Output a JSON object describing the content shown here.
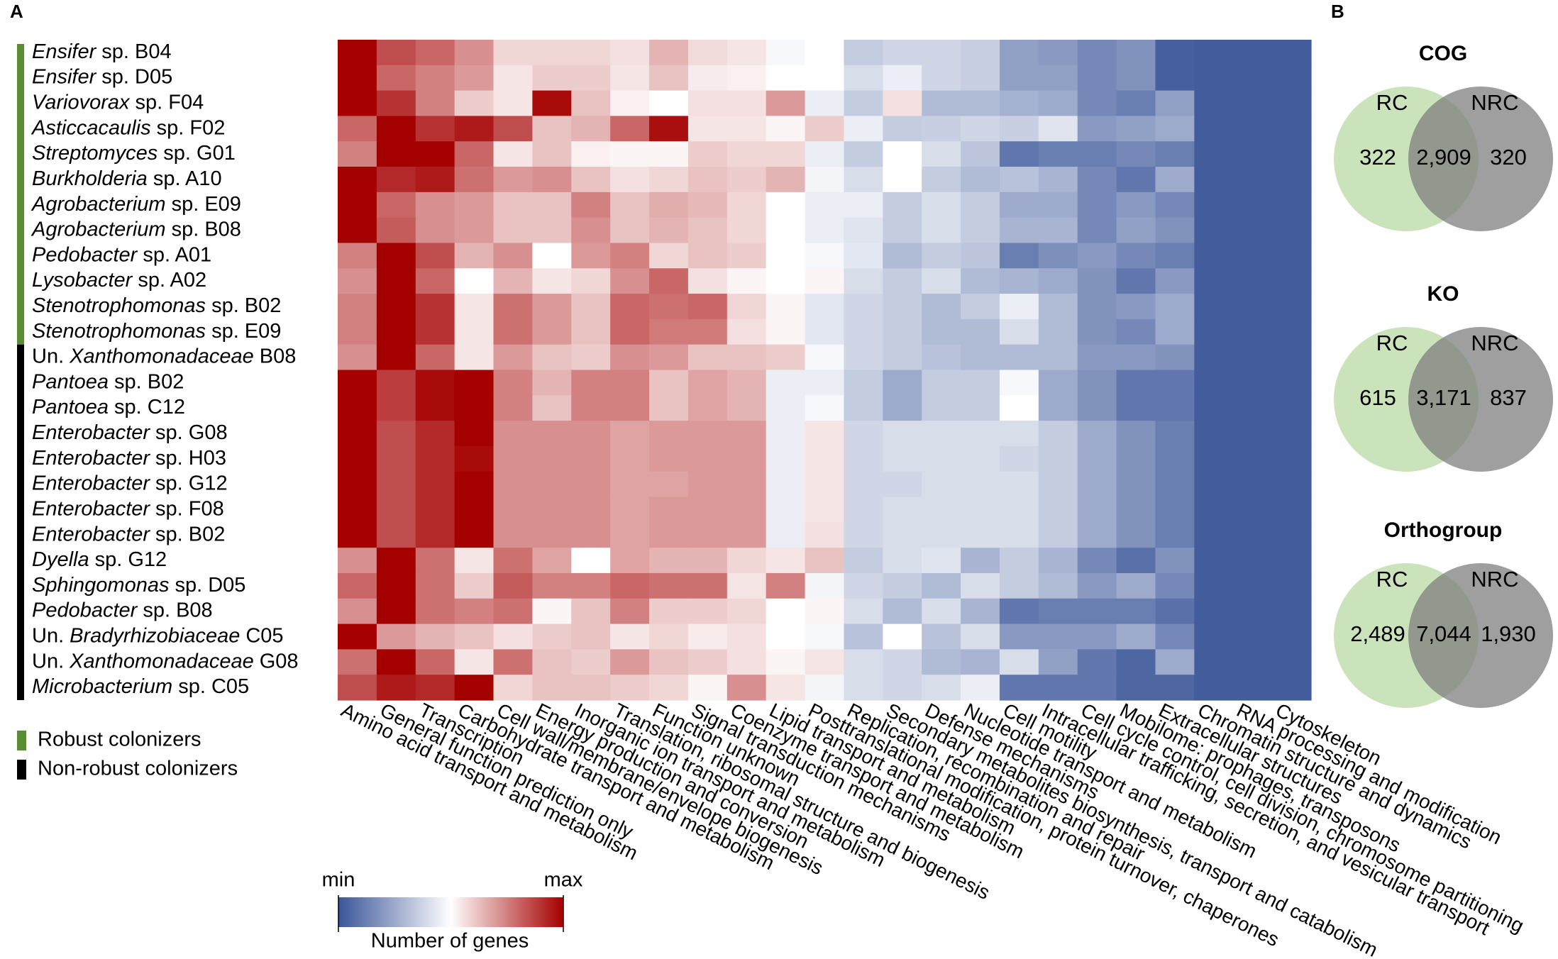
{
  "panels": [
    "A",
    "B"
  ],
  "chart_data": [
    {
      "type": "heatmap",
      "columns": [
        "Amino acid transport and metabolism",
        "General function prediction only",
        "Transcription",
        "Carbohydrate transport and metabolism",
        "Cell wall/membrane/envelope biogenesis",
        "Energy production and conversion",
        "Inorganic ion transport and metabolism",
        "Translation, ribosomal structure and biogenesis",
        "Function unknown",
        "Signal transduction mechanisms",
        "Coenzyme transport and metabolism",
        "Lipid transport and metabolism",
        "Posttranslational modification, protein turnover, chaperones",
        "Replication, recombination and repair",
        "Secondary metabolites biosynthesis, transport and catabolism",
        "Defense mechanisms",
        "Nucleotide transport and metabolism",
        "Cell motility",
        "Intracellular trafficking, secretion, and vesicular transport",
        "Cell cycle control, cell division, chromosome partitioning",
        "Mobilome: prophages, transposons",
        "Extracellular structures",
        "Chromatin structure and dynamics",
        "RNA processing and modification",
        "Cytoskeleton"
      ],
      "groups": [
        {
          "name": "Robust colonizers",
          "color": "#5b8c35",
          "rows": [
            {
              "italic": "Ensifer",
              "suffix": "sp. B04",
              "values": [
                100,
                85,
                80,
                72,
                58,
                58,
                58,
                56,
                65,
                57,
                55,
                48,
                50,
                35,
                38,
                38,
                36,
                22,
                20,
                15,
                18,
                3,
                2,
                2,
                2
              ]
            },
            {
              "italic": "Ensifer",
              "suffix": "sp. D05",
              "values": [
                100,
                80,
                75,
                70,
                55,
                60,
                60,
                55,
                62,
                54,
                53,
                50,
                50,
                40,
                45,
                38,
                36,
                22,
                22,
                15,
                18,
                3,
                2,
                2,
                2
              ]
            },
            {
              "italic": "Variovorax",
              "suffix": "sp. F04",
              "values": [
                100,
                90,
                75,
                60,
                55,
                98,
                62,
                53,
                50,
                56,
                56,
                70,
                45,
                35,
                56,
                30,
                30,
                27,
                25,
                15,
                12,
                22,
                2,
                2,
                2
              ]
            },
            {
              "italic": "Asticcacaulis",
              "suffix": "sp. F02",
              "values": [
                80,
                100,
                90,
                95,
                85,
                62,
                65,
                80,
                97,
                55,
                55,
                52,
                60,
                45,
                35,
                36,
                38,
                36,
                42,
                20,
                22,
                25,
                2,
                2,
                2
              ]
            },
            {
              "italic": "Streptomyces",
              "suffix": "sp. G01",
              "values": [
                75,
                100,
                100,
                80,
                55,
                62,
                53,
                52,
                52,
                60,
                58,
                58,
                45,
                35,
                50,
                40,
                33,
                10,
                12,
                12,
                15,
                12,
                2,
                2,
                2
              ]
            },
            {
              "italic": "Burkholderia",
              "suffix": "sp. A10",
              "values": [
                100,
                92,
                95,
                78,
                70,
                72,
                62,
                56,
                58,
                62,
                60,
                65,
                47,
                40,
                50,
                35,
                30,
                32,
                28,
                15,
                10,
                25,
                2,
                2,
                2
              ]
            },
            {
              "italic": "Agrobacterium",
              "suffix": "sp. E09",
              "values": [
                100,
                80,
                72,
                70,
                62,
                62,
                75,
                62,
                66,
                64,
                58,
                50,
                45,
                45,
                35,
                40,
                35,
                25,
                25,
                15,
                20,
                15,
                2,
                2,
                2
              ]
            },
            {
              "italic": "Agrobacterium",
              "suffix": "sp. B08",
              "values": [
                100,
                82,
                72,
                70,
                62,
                62,
                72,
                62,
                65,
                62,
                58,
                50,
                45,
                42,
                35,
                40,
                35,
                28,
                28,
                15,
                22,
                18,
                2,
                2,
                2
              ]
            },
            {
              "italic": "Pedobacter",
              "suffix": "sp. A01",
              "values": [
                75,
                100,
                85,
                65,
                72,
                50,
                70,
                75,
                58,
                62,
                60,
                50,
                48,
                43,
                30,
                35,
                33,
                12,
                17,
                20,
                15,
                12,
                2,
                2,
                2
              ]
            },
            {
              "italic": "Lysobacter",
              "suffix": "sp. A02",
              "values": [
                72,
                100,
                80,
                50,
                65,
                55,
                58,
                72,
                80,
                56,
                52,
                50,
                52,
                40,
                35,
                40,
                30,
                28,
                25,
                18,
                10,
                20,
                2,
                2,
                2
              ]
            },
            {
              "italic": "Stenotrophomonas",
              "suffix": "sp. B02",
              "values": [
                75,
                100,
                90,
                55,
                78,
                70,
                62,
                80,
                78,
                80,
                58,
                52,
                43,
                38,
                35,
                30,
                35,
                45,
                30,
                18,
                20,
                25,
                2,
                2,
                2
              ]
            },
            {
              "italic": "Stenotrophomonas",
              "suffix": "sp. E09",
              "values": [
                75,
                100,
                90,
                55,
                78,
                70,
                62,
                80,
                76,
                76,
                56,
                52,
                43,
                38,
                35,
                30,
                30,
                40,
                30,
                18,
                15,
                25,
                2,
                2,
                2
              ]
            }
          ]
        },
        {
          "name": "Non-robust colonizers",
          "color": "#000000",
          "rows": [
            {
              "prefix": "Un.",
              "italic": "Xanthomonadaceae",
              "suffix": "B08",
              "values": [
                72,
                100,
                80,
                55,
                70,
                62,
                60,
                72,
                70,
                62,
                62,
                60,
                48,
                38,
                35,
                32,
                30,
                30,
                30,
                20,
                20,
                18,
                2,
                2,
                2
              ]
            },
            {
              "italic": "Pantoea",
              "suffix": "sp. B02",
              "values": [
                100,
                88,
                98,
                100,
                75,
                65,
                75,
                75,
                62,
                68,
                65,
                45,
                45,
                35,
                25,
                35,
                35,
                48,
                25,
                18,
                10,
                10,
                2,
                2,
                2
              ]
            },
            {
              "italic": "Pantoea",
              "suffix": "sp. C12",
              "values": [
                100,
                88,
                98,
                100,
                75,
                62,
                75,
                75,
                62,
                68,
                65,
                45,
                48,
                35,
                25,
                35,
                35,
                50,
                25,
                18,
                10,
                10,
                2,
                2,
                2
              ]
            },
            {
              "italic": "Enterobacter",
              "suffix": "sp. G08",
              "values": [
                100,
                85,
                92,
                100,
                72,
                72,
                72,
                68,
                70,
                70,
                70,
                45,
                55,
                38,
                40,
                40,
                40,
                40,
                35,
                25,
                18,
                12,
                2,
                2,
                2
              ]
            },
            {
              "italic": "Enterobacter",
              "suffix": "sp. H03",
              "values": [
                100,
                85,
                92,
                98,
                72,
                72,
                72,
                68,
                70,
                70,
                70,
                45,
                55,
                38,
                40,
                40,
                40,
                38,
                35,
                25,
                18,
                12,
                2,
                2,
                2
              ]
            },
            {
              "italic": "Enterobacter",
              "suffix": "sp. G12",
              "values": [
                100,
                85,
                92,
                100,
                72,
                72,
                72,
                68,
                68,
                70,
                70,
                45,
                55,
                38,
                38,
                40,
                40,
                40,
                35,
                25,
                18,
                12,
                2,
                2,
                2
              ]
            },
            {
              "italic": "Enterobacter",
              "suffix": "sp. F08",
              "values": [
                100,
                85,
                92,
                100,
                72,
                72,
                72,
                68,
                70,
                70,
                70,
                45,
                55,
                38,
                40,
                40,
                40,
                40,
                35,
                25,
                18,
                12,
                2,
                2,
                2
              ]
            },
            {
              "italic": "Enterobacter",
              "suffix": "sp. B02",
              "values": [
                100,
                85,
                92,
                100,
                72,
                72,
                72,
                68,
                70,
                70,
                70,
                45,
                56,
                38,
                40,
                40,
                40,
                40,
                35,
                25,
                18,
                12,
                2,
                2,
                2
              ]
            },
            {
              "italic": "Dyella",
              "suffix": "sp. G12",
              "values": [
                72,
                100,
                78,
                55,
                78,
                68,
                50,
                68,
                65,
                65,
                58,
                55,
                62,
                35,
                40,
                42,
                28,
                35,
                28,
                15,
                8,
                18,
                2,
                2,
                2
              ]
            },
            {
              "italic": "Sphingomonas",
              "suffix": "sp. D05",
              "values": [
                80,
                100,
                78,
                60,
                82,
                75,
                75,
                80,
                78,
                78,
                55,
                75,
                47,
                38,
                35,
                30,
                40,
                35,
                30,
                20,
                25,
                15,
                2,
                2,
                2
              ]
            },
            {
              "italic": "Pedobacter",
              "suffix": "sp. B08",
              "values": [
                72,
                100,
                78,
                75,
                78,
                52,
                62,
                75,
                60,
                60,
                58,
                50,
                52,
                40,
                30,
                40,
                28,
                10,
                12,
                12,
                12,
                8,
                2,
                2,
                2
              ]
            },
            {
              "prefix": "Un.",
              "italic": "Bradyrhizobiaceae",
              "suffix": "C05",
              "values": [
                100,
                70,
                65,
                62,
                56,
                60,
                62,
                55,
                58,
                54,
                56,
                50,
                48,
                32,
                50,
                32,
                40,
                20,
                20,
                20,
                25,
                15,
                2,
                2,
                2
              ]
            },
            {
              "prefix": "Un.",
              "italic": "Xanthomonadaceae",
              "suffix": "G08",
              "values": [
                78,
                100,
                80,
                55,
                78,
                62,
                60,
                70,
                62,
                60,
                56,
                52,
                55,
                40,
                38,
                30,
                28,
                40,
                22,
                10,
                5,
                25,
                2,
                2,
                2
              ]
            },
            {
              "italic": "Microbacterium",
              "suffix": "sp. C05",
              "values": [
                85,
                95,
                92,
                100,
                58,
                62,
                62,
                60,
                58,
                52,
                72,
                55,
                47,
                40,
                38,
                40,
                45,
                10,
                10,
                10,
                5,
                5,
                2,
                2,
                2
              ]
            }
          ]
        }
      ],
      "zlim": [
        0,
        100
      ],
      "colorbar": {
        "label": "Number of genes",
        "min_label": "min",
        "max_label": "max",
        "colors": [
          "#3a5598",
          "#ffffff",
          "#a50000"
        ]
      }
    },
    {
      "type": "venn",
      "title": "COG",
      "sets": [
        "RC",
        "NRC"
      ],
      "colors": [
        "#a9d18e",
        "#7f7f7f"
      ],
      "values": [
        322,
        2909,
        320
      ],
      "value_labels": [
        "322",
        "2,909",
        "320"
      ]
    },
    {
      "type": "venn",
      "title": "KO",
      "sets": [
        "RC",
        "NRC"
      ],
      "colors": [
        "#a9d18e",
        "#7f7f7f"
      ],
      "values": [
        615,
        3171,
        837
      ],
      "value_labels": [
        "615",
        "3,171",
        "837"
      ]
    },
    {
      "type": "venn",
      "title": "Orthogroup",
      "sets": [
        "RC",
        "NRC"
      ],
      "colors": [
        "#a9d18e",
        "#7f7f7f"
      ],
      "values": [
        2489,
        7044,
        1930
      ],
      "value_labels": [
        "2,489",
        "7,044",
        "1,930"
      ]
    }
  ]
}
